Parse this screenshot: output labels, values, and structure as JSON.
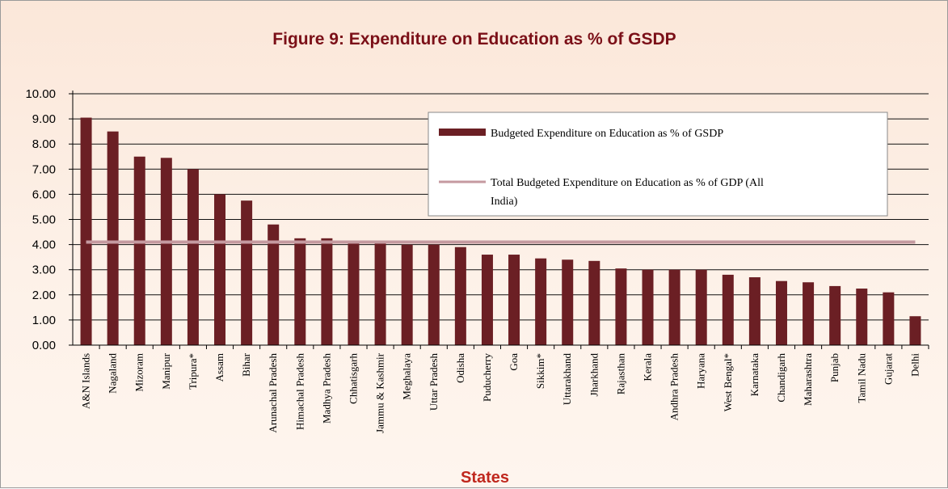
{
  "chart_data": {
    "type": "bar",
    "title": "Figure 9: Expenditure on Education as % of GSDP",
    "xlabel": "States",
    "ylabel": "",
    "ylim": [
      0,
      10
    ],
    "yticks": [
      "0.00",
      "1.00",
      "2.00",
      "3.00",
      "4.00",
      "5.00",
      "6.00",
      "7.00",
      "8.00",
      "9.00",
      "10.00"
    ],
    "grid": true,
    "legend_position": "top-right",
    "categories": [
      "A&N Islands",
      "Nagaland",
      "Mizoram",
      "Manipur",
      "Tripura*",
      "Assam",
      "Bihar",
      "Arunachal Pradesh",
      "Himachal Pradesh",
      "Madhya Pradesh",
      "Chhatisgarh",
      "Jammu & Kashmir",
      "Meghalaya",
      "Uttar Pradesh",
      "Odisha",
      "Puducherry",
      "Goa",
      "Sikkim*",
      "Uttarakhand",
      "Jharkhand",
      "Rajasthan",
      "Kerala",
      "Andhra Pradesh",
      "Haryana",
      "West Bengal*",
      "Karnataka",
      "Chandigarh",
      "Maharashtra",
      "Punjab",
      "Tamil Nadu",
      "Gujarat",
      "Delhi"
    ],
    "series": [
      {
        "name": "Budgeted Expenditure on Education as % of GSDP",
        "kind": "bar",
        "color": "#6b1f24",
        "values": [
          9.05,
          8.5,
          7.5,
          7.45,
          7.0,
          6.0,
          5.75,
          4.8,
          4.25,
          4.25,
          4.1,
          4.05,
          4.0,
          4.0,
          3.9,
          3.6,
          3.6,
          3.45,
          3.4,
          3.35,
          3.05,
          3.0,
          3.0,
          3.0,
          2.8,
          2.7,
          2.55,
          2.5,
          2.35,
          2.25,
          2.1,
          1.15
        ]
      },
      {
        "name": "Total Budgeted Expenditure on Education as % of GDP (All India)",
        "kind": "line",
        "color": "#c59aa0",
        "value": 4.1
      }
    ]
  }
}
